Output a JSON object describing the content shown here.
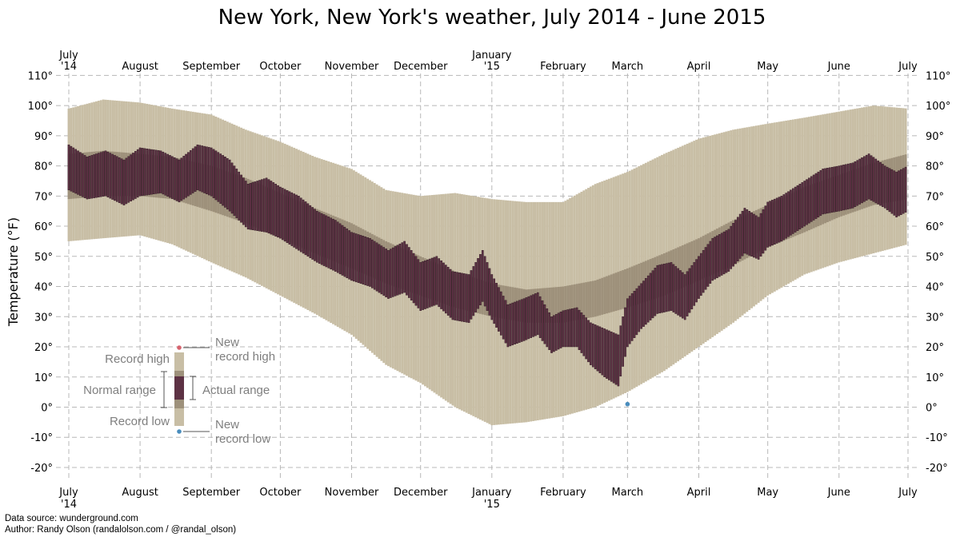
{
  "chart_data": {
    "type": "bar",
    "title": "New York, New York's weather, July 2014 - June 2015",
    "ylabel": "Temperature (°F)",
    "xlabel": "",
    "ylim": [
      -25,
      110
    ],
    "y_ticks": [
      "110°",
      "100°",
      "90°",
      "80°",
      "70°",
      "60°",
      "50°",
      "40°",
      "30°",
      "20°",
      "10°",
      "0°",
      "-10°",
      "-20°"
    ],
    "y_tick_values": [
      110,
      100,
      90,
      80,
      70,
      60,
      50,
      40,
      30,
      20,
      10,
      0,
      -10,
      -20
    ],
    "x_ticks": [
      {
        "line1": "July",
        "line2": "'14",
        "day": 0
      },
      {
        "line1": "August",
        "line2": "",
        "day": 31
      },
      {
        "line1": "September",
        "line2": "",
        "day": 62
      },
      {
        "line1": "October",
        "line2": "",
        "day": 92
      },
      {
        "line1": "November",
        "line2": "",
        "day": 123
      },
      {
        "line1": "December",
        "line2": "",
        "day": 153
      },
      {
        "line1": "January",
        "line2": "'15",
        "day": 184
      },
      {
        "line1": "February",
        "line2": "",
        "day": 215
      },
      {
        "line1": "March",
        "line2": "",
        "day": 243
      },
      {
        "line1": "April",
        "line2": "",
        "day": 274
      },
      {
        "line1": "May",
        "line2": "",
        "day": 304
      },
      {
        "line1": "June",
        "line2": "",
        "day": 335
      },
      {
        "line1": "July",
        "line2": "",
        "day": 365
      }
    ],
    "grid": true,
    "colors": {
      "record": "#c8bea5",
      "normal": "#9e917b",
      "actual": "#5d3244",
      "new_high": "#d6636e",
      "new_low": "#4a8dbd",
      "legend_text": "#7f7f7f"
    },
    "series": [
      {
        "name": "Record high",
        "points": [
          [
            0,
            99
          ],
          [
            15,
            102
          ],
          [
            31,
            101
          ],
          [
            45,
            99
          ],
          [
            62,
            97
          ],
          [
            77,
            92
          ],
          [
            92,
            88
          ],
          [
            107,
            83
          ],
          [
            123,
            79
          ],
          [
            138,
            72
          ],
          [
            153,
            70
          ],
          [
            168,
            71
          ],
          [
            184,
            69
          ],
          [
            199,
            68
          ],
          [
            215,
            68
          ],
          [
            229,
            74
          ],
          [
            243,
            78
          ],
          [
            259,
            84
          ],
          [
            274,
            89
          ],
          [
            289,
            92
          ],
          [
            304,
            94
          ],
          [
            320,
            96
          ],
          [
            335,
            98
          ],
          [
            350,
            100
          ],
          [
            365,
            99
          ]
        ]
      },
      {
        "name": "Normal high",
        "points": [
          [
            0,
            84
          ],
          [
            15,
            85
          ],
          [
            31,
            84
          ],
          [
            45,
            83
          ],
          [
            62,
            80
          ],
          [
            77,
            76
          ],
          [
            92,
            71
          ],
          [
            107,
            66
          ],
          [
            123,
            61
          ],
          [
            138,
            55
          ],
          [
            153,
            50
          ],
          [
            168,
            45
          ],
          [
            184,
            41
          ],
          [
            199,
            39
          ],
          [
            215,
            40
          ],
          [
            229,
            42
          ],
          [
            243,
            46
          ],
          [
            259,
            51
          ],
          [
            274,
            56
          ],
          [
            289,
            62
          ],
          [
            304,
            67
          ],
          [
            320,
            73
          ],
          [
            335,
            77
          ],
          [
            350,
            81
          ],
          [
            365,
            84
          ]
        ]
      },
      {
        "name": "Normal low",
        "points": [
          [
            0,
            69
          ],
          [
            15,
            70
          ],
          [
            31,
            70
          ],
          [
            45,
            69
          ],
          [
            62,
            65
          ],
          [
            77,
            61
          ],
          [
            92,
            56
          ],
          [
            107,
            51
          ],
          [
            123,
            46
          ],
          [
            138,
            41
          ],
          [
            153,
            37
          ],
          [
            168,
            33
          ],
          [
            184,
            30
          ],
          [
            199,
            28
          ],
          [
            215,
            28
          ],
          [
            229,
            30
          ],
          [
            243,
            33
          ],
          [
            259,
            37
          ],
          [
            274,
            42
          ],
          [
            289,
            47
          ],
          [
            304,
            53
          ],
          [
            320,
            58
          ],
          [
            335,
            63
          ],
          [
            350,
            67
          ],
          [
            365,
            69
          ]
        ]
      },
      {
        "name": "Record low",
        "points": [
          [
            0,
            55
          ],
          [
            15,
            56
          ],
          [
            31,
            57
          ],
          [
            45,
            54
          ],
          [
            62,
            48
          ],
          [
            77,
            43
          ],
          [
            92,
            37
          ],
          [
            107,
            31
          ],
          [
            123,
            24
          ],
          [
            138,
            14
          ],
          [
            153,
            8
          ],
          [
            168,
            0
          ],
          [
            184,
            -6
          ],
          [
            199,
            -5
          ],
          [
            215,
            -3
          ],
          [
            229,
            0
          ],
          [
            243,
            5
          ],
          [
            259,
            12
          ],
          [
            274,
            20
          ],
          [
            289,
            28
          ],
          [
            304,
            37
          ],
          [
            320,
            44
          ],
          [
            335,
            48
          ],
          [
            350,
            51
          ],
          [
            365,
            54
          ]
        ]
      },
      {
        "name": "Actual high",
        "points": [
          [
            0,
            87
          ],
          [
            8,
            83
          ],
          [
            16,
            85
          ],
          [
            24,
            82
          ],
          [
            31,
            86
          ],
          [
            40,
            85
          ],
          [
            48,
            82
          ],
          [
            56,
            87
          ],
          [
            62,
            86
          ],
          [
            70,
            82
          ],
          [
            78,
            74
          ],
          [
            86,
            76
          ],
          [
            92,
            73
          ],
          [
            100,
            70
          ],
          [
            108,
            65
          ],
          [
            116,
            62
          ],
          [
            123,
            58
          ],
          [
            131,
            56
          ],
          [
            139,
            52
          ],
          [
            146,
            55
          ],
          [
            153,
            48
          ],
          [
            160,
            50
          ],
          [
            167,
            45
          ],
          [
            174,
            44
          ],
          [
            180,
            52
          ],
          [
            184,
            44
          ],
          [
            191,
            34
          ],
          [
            198,
            36
          ],
          [
            204,
            38
          ],
          [
            210,
            30
          ],
          [
            215,
            32
          ],
          [
            221,
            33
          ],
          [
            227,
            28
          ],
          [
            233,
            26
          ],
          [
            239,
            24
          ],
          [
            243,
            36
          ],
          [
            249,
            41
          ],
          [
            256,
            47
          ],
          [
            262,
            48
          ],
          [
            268,
            44
          ],
          [
            274,
            50
          ],
          [
            280,
            56
          ],
          [
            287,
            59
          ],
          [
            294,
            66
          ],
          [
            300,
            63
          ],
          [
            304,
            68
          ],
          [
            310,
            70
          ],
          [
            316,
            73
          ],
          [
            322,
            76
          ],
          [
            328,
            79
          ],
          [
            335,
            80
          ],
          [
            341,
            81
          ],
          [
            348,
            84
          ],
          [
            355,
            80
          ],
          [
            360,
            78
          ],
          [
            365,
            80
          ]
        ]
      },
      {
        "name": "Actual low",
        "points": [
          [
            0,
            72
          ],
          [
            8,
            69
          ],
          [
            16,
            70
          ],
          [
            24,
            67
          ],
          [
            31,
            70
          ],
          [
            40,
            71
          ],
          [
            48,
            68
          ],
          [
            56,
            72
          ],
          [
            62,
            70
          ],
          [
            70,
            65
          ],
          [
            78,
            59
          ],
          [
            86,
            58
          ],
          [
            92,
            56
          ],
          [
            100,
            52
          ],
          [
            108,
            48
          ],
          [
            116,
            45
          ],
          [
            123,
            42
          ],
          [
            131,
            40
          ],
          [
            139,
            36
          ],
          [
            146,
            38
          ],
          [
            153,
            32
          ],
          [
            160,
            34
          ],
          [
            167,
            29
          ],
          [
            174,
            28
          ],
          [
            180,
            35
          ],
          [
            184,
            29
          ],
          [
            191,
            20
          ],
          [
            198,
            22
          ],
          [
            204,
            24
          ],
          [
            210,
            18
          ],
          [
            215,
            20
          ],
          [
            221,
            20
          ],
          [
            227,
            14
          ],
          [
            233,
            10
          ],
          [
            239,
            7
          ],
          [
            243,
            20
          ],
          [
            249,
            26
          ],
          [
            256,
            31
          ],
          [
            262,
            32
          ],
          [
            268,
            29
          ],
          [
            274,
            36
          ],
          [
            280,
            42
          ],
          [
            287,
            45
          ],
          [
            294,
            51
          ],
          [
            300,
            49
          ],
          [
            304,
            53
          ],
          [
            310,
            55
          ],
          [
            316,
            58
          ],
          [
            322,
            61
          ],
          [
            328,
            64
          ],
          [
            335,
            65
          ],
          [
            341,
            66
          ],
          [
            348,
            69
          ],
          [
            355,
            66
          ],
          [
            360,
            63
          ],
          [
            365,
            65
          ]
        ]
      },
      {
        "name": "New record low",
        "points": [
          [
            243,
            1
          ]
        ]
      }
    ],
    "legend": {
      "placement": "bottom-left",
      "record_high": "Record high",
      "record_low": "Record low",
      "normal_range": "Normal range",
      "actual_range": "Actual range",
      "new_record_high_1": "New",
      "new_record_high_2": "record high",
      "new_record_low_1": "New",
      "new_record_low_2": "record low"
    }
  },
  "credits": {
    "source": "Data source: wunderground.com",
    "author": "Author: Randy Olson (randalolson.com / @randal_olson)"
  }
}
